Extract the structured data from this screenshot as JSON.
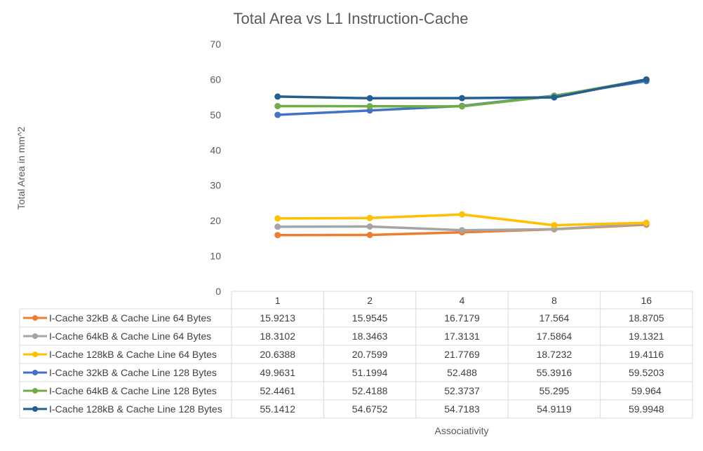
{
  "chart_data": {
    "type": "line",
    "title": "Total Area vs L1 Instruction-Cache",
    "xlabel": "Associativity",
    "ylabel": "Total Area in mm^2",
    "categories": [
      "1",
      "2",
      "4",
      "8",
      "16"
    ],
    "ylim": [
      0,
      70
    ],
    "yticks": [
      0,
      10,
      20,
      30,
      40,
      50,
      60,
      70
    ],
    "grid": false,
    "legend": "data-table-bottom",
    "series": [
      {
        "name": "I-Cache 32kB & Cache Line 64 Bytes",
        "color": "#ED7D31",
        "values": [
          15.9213,
          15.9545,
          16.7179,
          17.564,
          18.8705
        ],
        "labels": [
          "15.9213",
          "15.9545",
          "16.7179",
          "17.564",
          "18.8705"
        ]
      },
      {
        "name": "I-Cache 64kB & Cache Line 64 Bytes",
        "color": "#A5A5A5",
        "values": [
          18.3102,
          18.3463,
          17.3131,
          17.5864,
          19.1321
        ],
        "labels": [
          "18.3102",
          "18.3463",
          "17.3131",
          "17.5864",
          "19.1321"
        ]
      },
      {
        "name": "I-Cache 128kB & Cache Line 64 Bytes",
        "color": "#FFC000",
        "values": [
          20.6388,
          20.7599,
          21.7769,
          18.7232,
          19.4116
        ],
        "labels": [
          "20.6388",
          "20.7599",
          "21.7769",
          "18.7232",
          "19.4116"
        ]
      },
      {
        "name": "I-Cache 32kB & Cache Line 128 Bytes",
        "color": "#4472C4",
        "values": [
          49.9631,
          51.1994,
          52.488,
          55.3916,
          59.5203
        ],
        "labels": [
          "49.9631",
          "51.1994",
          "52.488",
          "55.3916",
          "59.5203"
        ]
      },
      {
        "name": "I-Cache 64kB & Cache Line 128 Bytes",
        "color": "#70AD47",
        "values": [
          52.4461,
          52.4188,
          52.3737,
          55.295,
          59.964
        ],
        "labels": [
          "52.4461",
          "52.4188",
          "52.3737",
          "55.295",
          "59.964"
        ]
      },
      {
        "name": "I-Cache 128kB & Cache Line 128 Bytes",
        "color": "#255E91",
        "values": [
          55.1412,
          54.6752,
          54.7183,
          54.9119,
          59.9948
        ],
        "labels": [
          "55.1412",
          "54.6752",
          "54.7183",
          "54.9119",
          "59.9948"
        ]
      }
    ]
  }
}
